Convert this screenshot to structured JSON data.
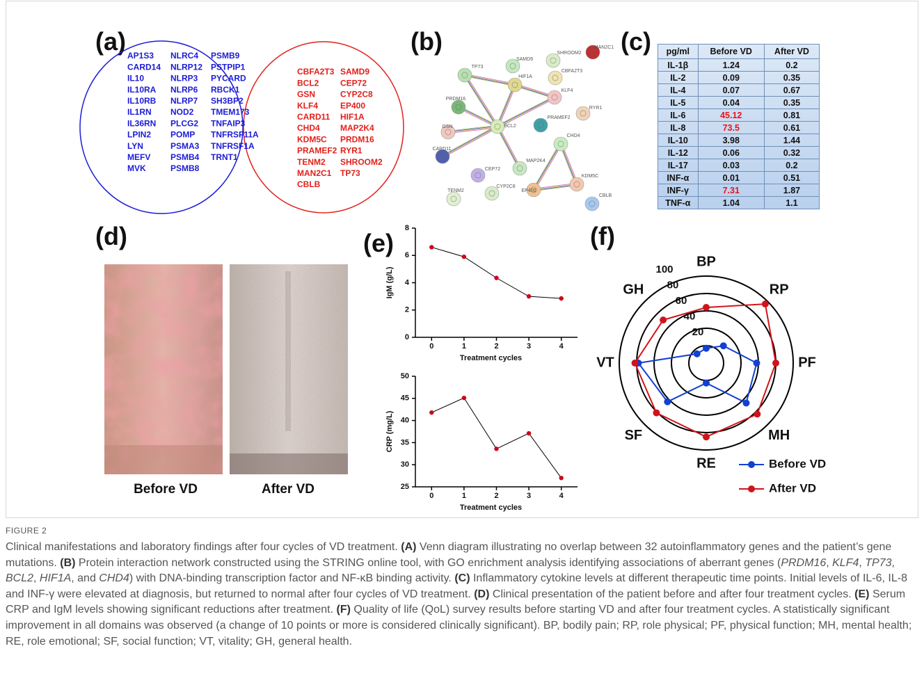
{
  "figure": {
    "label": "FIGURE 2",
    "caption": [
      "Clinical manifestations and laboratory findings after four cycles of VD treatment. ",
      {
        "bold": "(A)"
      },
      " Venn diagram illustrating no overlap between 32 autoinflammatory genes and the patient’s gene mutations. ",
      {
        "bold": "(B)"
      },
      " Protein interaction network constructed using the STRING online tool, with GO enrichment analysis identifying associations of aberrant genes (",
      {
        "italic": "PRDM16"
      },
      ", ",
      {
        "italic": "KLF4"
      },
      ", ",
      {
        "italic": "TP73"
      },
      ", ",
      {
        "italic": "BCL2"
      },
      ", ",
      {
        "italic": "HIF1A"
      },
      ", and ",
      {
        "italic": "CHD4"
      },
      ") with DNA-binding transcription factor and NF-κB binding activity. ",
      {
        "bold": "(C)"
      },
      " Inflammatory cytokine levels at different therapeutic time points. Initial levels of IL-6, IL-8 and INF-γ were elevated at diagnosis, but returned to normal after four cycles of VD treatment. ",
      {
        "bold": "(D)"
      },
      " Clinical presentation of the patient before and after four treatment cycles. ",
      {
        "bold": "(E)"
      },
      " Serum CRP and IgM levels showing significant reductions after treatment. ",
      {
        "bold": "(F)"
      },
      " Quality of life (QoL) survey results before starting VD and after four treatment cycles. A statistically significant improvement in all domains was observed (a change of 10 points or more is considered clinically significant). BP, bodily pain; RP, role physical; PF, physical function; MH, mental health; RE, role emotional; SF, social function; VT, vitality; GH, general health."
    ]
  },
  "panel_labels": [
    "(a)",
    "(b)",
    "(c)",
    "(d)",
    "(e)",
    "(f)"
  ],
  "venn": {
    "left": {
      "color": "#1c1cd6",
      "columns": [
        [
          "AP1S3",
          "CARD14",
          "IL10",
          "IL10RA",
          "IL10RB",
          "IL1RN",
          "IL36RN",
          "LPIN2",
          "LYN",
          "MEFV",
          "MVK"
        ],
        [
          "NLRC4",
          "NLRP12",
          "NLRP3",
          "NLRP6",
          "NLRP7",
          "NOD2",
          "PLCG2",
          "POMP",
          "PSMA3",
          "PSMB4",
          "PSMB8"
        ],
        [
          "PSMB9",
          "PSTPIP1",
          "PYCARD",
          "RBCK1",
          "SH3BP2",
          "TMEM173",
          "TNFAIP3",
          "TNFRSF11A",
          "TNFRSF1A",
          "TRNT1"
        ]
      ]
    },
    "right": {
      "color": "#e3201b",
      "columns": [
        [
          "CBFA2T3",
          "BCL2",
          "GSN",
          "KLF4",
          "CARD11",
          "CHD4",
          "KDM5C",
          "PRAMEF2",
          "TENM2",
          "MAN2C1",
          "CBLB"
        ],
        [
          "SAMD9",
          "CEP72",
          "CYP2C8",
          "EP400",
          "HIF1A",
          "MAP2K4",
          "PRDM16",
          "RYR1",
          "SHROOM2",
          "TP73"
        ]
      ]
    }
  },
  "network": {
    "nodes": [
      "TP73",
      "SAMD9",
      "SHROOM2",
      "MAN2C1",
      "CBFA2T3",
      "HIF1A",
      "KLF4",
      "PRDM16",
      "RYR1",
      "BCL2",
      "PRAMEF2",
      "GSN",
      "CHD4",
      "CARD11",
      "MAP2K4",
      "CEP72",
      "KDM5C",
      "EP400",
      "CYP2C8",
      "TENM2",
      "CBLB"
    ]
  },
  "table": {
    "header": [
      "pg/ml",
      "Before VD",
      "After VD"
    ],
    "rows": [
      [
        "IL-1β",
        "1.24",
        "0.2"
      ],
      [
        "IL-2",
        "0.09",
        "0.35"
      ],
      [
        "IL-4",
        "0.07",
        "0.67"
      ],
      [
        "IL-5",
        "0.04",
        "0.35"
      ],
      [
        "IL-6",
        {
          "text": "45.12",
          "color": "#e8141b"
        },
        "0.81"
      ],
      [
        "IL-8",
        {
          "text": "73.5",
          "color": "#e8141b"
        },
        "0.61"
      ],
      [
        "IL-10",
        "3.98",
        "1.44"
      ],
      [
        "IL-12",
        "0.06",
        "0.32"
      ],
      [
        "IL-17",
        "0.03",
        "0.2"
      ],
      [
        "INF-α",
        "0.01",
        "0.51"
      ],
      [
        "INF-γ",
        {
          "text": "7.31",
          "color": "#e8141b"
        },
        "1.87"
      ],
      [
        "TNF-α",
        "1.04",
        "1.1"
      ]
    ]
  },
  "photos": {
    "captions": [
      "Before VD",
      "After VD"
    ]
  },
  "chart_data": [
    {
      "type": "line",
      "x": [
        0,
        1,
        2,
        3,
        4
      ],
      "values": [
        6.6,
        5.9,
        4.35,
        3.0,
        2.85
      ],
      "xlim": [
        -0.5,
        4.5
      ],
      "xticks": [
        0,
        1,
        2,
        3,
        4
      ],
      "ylim": [
        0,
        8
      ],
      "yticks": [
        0,
        2,
        4,
        6,
        8
      ],
      "xlabel": "Treatment cycles",
      "ylabel": "IgM (g/L)",
      "color": "#000000",
      "marker_color": "#d0021b"
    },
    {
      "type": "line",
      "x": [
        0,
        1,
        2,
        3,
        4
      ],
      "values": [
        41.8,
        45.1,
        33.6,
        37.1,
        27.0
      ],
      "xlim": [
        -0.5,
        4.5
      ],
      "xticks": [
        0,
        1,
        2,
        3,
        4
      ],
      "ylim": [
        25,
        50
      ],
      "yticks": [
        25,
        30,
        35,
        40,
        45,
        50
      ],
      "xlabel": "Treatment cycles",
      "ylabel": "CRP (mg/L)",
      "color": "#000000",
      "marker_color": "#d0021b"
    },
    {
      "type": "radar",
      "axes": [
        "BP",
        "RP",
        "PF",
        "MH",
        "RE",
        "SF",
        "VT",
        "GH"
      ],
      "rlim": [
        0,
        100
      ],
      "rticks": [
        20,
        40,
        60,
        80,
        100
      ],
      "legend": "lower right",
      "series": [
        {
          "name": "Before VD",
          "color": "#1240d2",
          "values": [
            17,
            28,
            58,
            65,
            23,
            63,
            78,
            15
          ]
        },
        {
          "name": "After VD",
          "color": "#d0141b",
          "values": [
            64,
            96,
            80,
            83,
            85,
            81,
            82,
            70
          ]
        }
      ]
    }
  ]
}
